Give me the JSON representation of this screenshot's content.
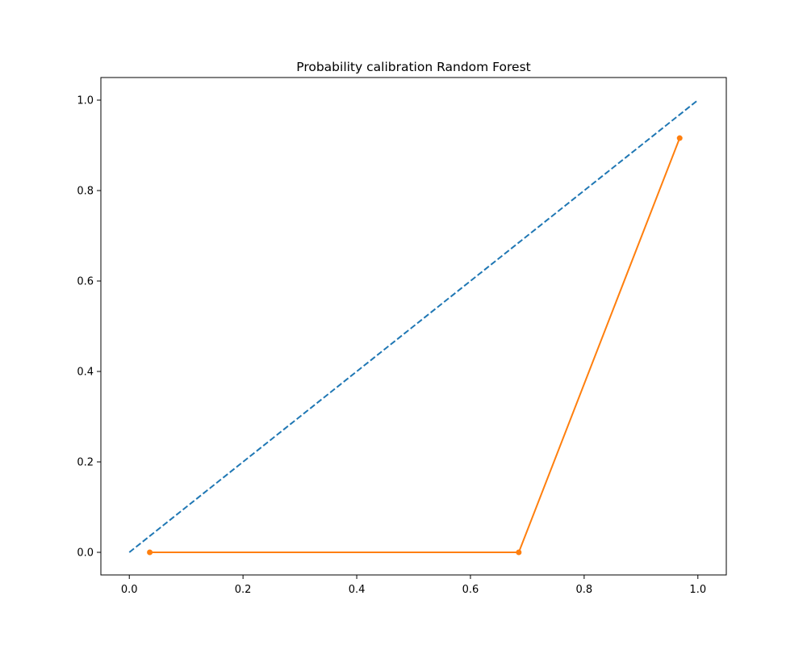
{
  "chart_data": {
    "type": "line",
    "title": "Probability calibration Random Forest",
    "xlabel": "",
    "ylabel": "",
    "xlim": [
      -0.05,
      1.05
    ],
    "ylim": [
      -0.05,
      1.05
    ],
    "grid": false,
    "x_ticks": [
      0.0,
      0.2,
      0.4,
      0.6,
      0.8,
      1.0
    ],
    "x_tick_labels": [
      "0.0",
      "0.2",
      "0.4",
      "0.6",
      "0.8",
      "1.0"
    ],
    "y_ticks": [
      0.0,
      0.2,
      0.4,
      0.6,
      0.8,
      1.0
    ],
    "y_tick_labels": [
      "0.0",
      "0.2",
      "0.4",
      "0.6",
      "0.8",
      "1.0"
    ],
    "series": [
      {
        "style": "dashed",
        "color": "#1f77b4",
        "markers": false,
        "x": [
          0.0,
          1.0
        ],
        "y": [
          0.0,
          1.0
        ]
      },
      {
        "style": "solid",
        "color": "#ff7f0e",
        "markers": true,
        "x": [
          0.036,
          0.685,
          0.968
        ],
        "y": [
          0.0,
          0.0,
          0.916
        ]
      }
    ]
  }
}
